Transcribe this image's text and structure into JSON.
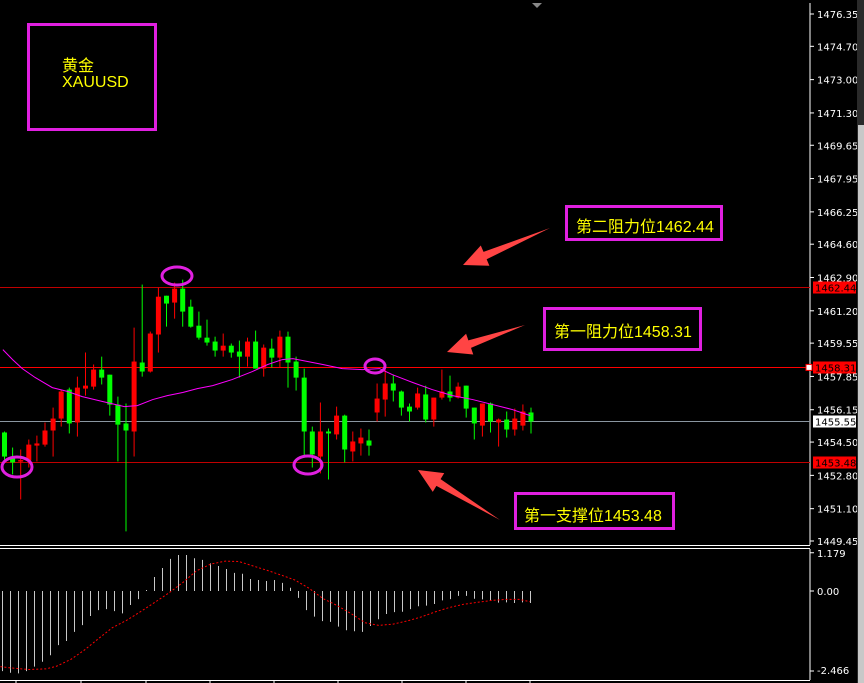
{
  "symbol_box": {
    "name_cn": "黄金",
    "symbol": "XAUUSD"
  },
  "annotations": [
    {
      "text": "第二阻力位1462.44"
    },
    {
      "text": "第一阻力位1458.31"
    },
    {
      "text": "第一支撑位1453.48"
    }
  ],
  "colors": {
    "bull": "#ff0000",
    "bear": "#00ff00",
    "ma": "#ff00ff",
    "annotation_border": "#e020e0",
    "annotation_text": "#ffff00",
    "arrow": "#ff4444",
    "level_line": "#ff0000",
    "price_line": "#8a96a0",
    "macd_hist": "#c8c8c8",
    "macd_signal": "#ff0000"
  },
  "chart_data": [
    {
      "type": "candlestick",
      "title": "",
      "ylim": [
        1449.45,
        1476.35
      ],
      "y_ticks": [
        "1476.35",
        "1474.70",
        "1473.00",
        "1471.30",
        "1469.65",
        "1467.95",
        "1466.25",
        "1464.60",
        "1462.90",
        "1461.20",
        "1459.55",
        "1457.85",
        "1456.15",
        "1454.50",
        "1452.80",
        "1451.10",
        "1449.45"
      ],
      "levels": [
        {
          "label": "1462.44",
          "value": 1462.44,
          "kind": "resistance-2"
        },
        {
          "label": "1458.31",
          "value": 1458.31,
          "kind": "resistance-1"
        },
        {
          "label": "1453.48",
          "value": 1453.48,
          "kind": "support-1"
        }
      ],
      "current_price": {
        "label": "1455.55",
        "value": 1455.55
      },
      "candles_ohlc": [
        [
          1454.99,
          1455.04,
          1453.61,
          1453.76
        ],
        [
          1453.71,
          1454.22,
          1452.85,
          1453.46
        ],
        [
          1453.52,
          1454.12,
          1451.57,
          1453.58
        ],
        [
          1453.56,
          1454.63,
          1453.2,
          1454.37
        ],
        [
          1454.32,
          1454.83,
          1453.51,
          1454.43
        ],
        [
          1454.37,
          1455.5,
          1454.27,
          1455.09
        ],
        [
          1455.09,
          1456.26,
          1453.76,
          1455.7
        ],
        [
          1455.7,
          1457.18,
          1455.29,
          1457.08
        ],
        [
          1457.18,
          1457.28,
          1454.94,
          1455.45
        ],
        [
          1455.5,
          1457.84,
          1454.78,
          1457.28
        ],
        [
          1457.23,
          1459.07,
          1456.87,
          1457.38
        ],
        [
          1457.33,
          1458.46,
          1457.18,
          1458.2
        ],
        [
          1458.2,
          1458.86,
          1457.44,
          1457.79
        ],
        [
          1457.94,
          1457.94,
          1455.85,
          1456.41
        ],
        [
          1456.41,
          1456.82,
          1453.51,
          1455.39
        ],
        [
          1455.45,
          1456.47,
          1449.94,
          1455.09
        ],
        [
          1455.04,
          1460.34,
          1453.76,
          1458.61
        ],
        [
          1458.56,
          1462.54,
          1457.84,
          1458.1
        ],
        [
          1458.1,
          1460.14,
          1458.05,
          1460.04
        ],
        [
          1459.99,
          1462.38,
          1459.07,
          1461.92
        ],
        [
          1461.97,
          1461.97,
          1460.39,
          1461.57
        ],
        [
          1461.62,
          1462.64,
          1460.8,
          1462.33
        ],
        [
          1462.33,
          1462.79,
          1460.39,
          1461.16
        ],
        [
          1461.41,
          1461.77,
          1460.34,
          1460.39
        ],
        [
          1460.44,
          1461.16,
          1459.73,
          1459.83
        ],
        [
          1459.83,
          1460.75,
          1459.42,
          1459.58
        ],
        [
          1459.63,
          1459.88,
          1458.86,
          1459.17
        ],
        [
          1459.17,
          1460.04,
          1458.86,
          1459.42
        ],
        [
          1459.42,
          1459.53,
          1458.81,
          1459.07
        ],
        [
          1459.12,
          1459.68,
          1457.79,
          1458.86
        ],
        [
          1458.86,
          1459.83,
          1458.35,
          1459.63
        ],
        [
          1459.63,
          1460.19,
          1458.25,
          1458.25
        ],
        [
          1458.25,
          1459.48,
          1457.84,
          1459.32
        ],
        [
          1459.27,
          1459.78,
          1458.3,
          1458.81
        ],
        [
          1458.81,
          1460.19,
          1458.3,
          1459.88
        ],
        [
          1459.88,
          1460.14,
          1457.28,
          1458.56
        ],
        [
          1458.61,
          1458.86,
          1457.13,
          1457.79
        ],
        [
          1457.79,
          1458.25,
          1453.81,
          1455.04
        ],
        [
          1455.04,
          1455.29,
          1453.2,
          1453.87
        ],
        [
          1453.76,
          1456.52,
          1452.9,
          1455.04
        ],
        [
          1455.04,
          1455.19,
          1452.59,
          1454.94
        ],
        [
          1454.89,
          1456.31,
          1454.63,
          1455.85
        ],
        [
          1455.85,
          1455.9,
          1453.46,
          1454.12
        ],
        [
          1454.02,
          1455.04,
          1453.51,
          1454.53
        ],
        [
          1454.43,
          1455.19,
          1453.81,
          1454.73
        ],
        [
          1454.58,
          1455.14,
          1453.81,
          1454.32
        ],
        [
          1456.01,
          1457.49,
          1455.55,
          1456.72
        ],
        [
          1456.67,
          1458.2,
          1455.8,
          1457.49
        ],
        [
          1457.49,
          1457.94,
          1456.57,
          1457.13
        ],
        [
          1457.08,
          1457.13,
          1455.85,
          1456.26
        ],
        [
          1456.31,
          1456.47,
          1455.55,
          1456.06
        ],
        [
          1456.26,
          1457.28,
          1456.16,
          1456.98
        ],
        [
          1456.93,
          1457.38,
          1455.5,
          1455.65
        ],
        [
          1455.65,
          1456.77,
          1455.29,
          1456.77
        ],
        [
          1456.77,
          1458.2,
          1456.67,
          1457.08
        ],
        [
          1457.08,
          1457.89,
          1456.57,
          1456.77
        ],
        [
          1456.77,
          1457.54,
          1456.72,
          1457.33
        ],
        [
          1457.38,
          1457.38,
          1455.75,
          1456.21
        ],
        [
          1456.26,
          1456.26,
          1454.63,
          1455.45
        ],
        [
          1455.34,
          1456.47,
          1454.78,
          1456.47
        ],
        [
          1456.47,
          1456.52,
          1454.99,
          1455.55
        ],
        [
          1455.5,
          1455.7,
          1454.27,
          1455.65
        ],
        [
          1455.65,
          1456.06,
          1454.73,
          1455.14
        ],
        [
          1455.14,
          1456.21,
          1454.83,
          1455.7
        ],
        [
          1455.34,
          1456.42,
          1455.09,
          1456.06
        ],
        [
          1456.01,
          1456.26,
          1454.94,
          1455.55
        ]
      ],
      "moving_average": [
        [
          0.8,
          1459.22
        ],
        [
          2,
          1458.71
        ],
        [
          3.2,
          1458.25
        ],
        [
          4.8,
          1457.79
        ],
        [
          6.9,
          1457.28
        ],
        [
          8.8,
          1457.08
        ],
        [
          10.6,
          1456.82
        ],
        [
          13.1,
          1456.57
        ],
        [
          15.8,
          1456.31
        ],
        [
          17.4,
          1456.36
        ],
        [
          19.3,
          1456.67
        ],
        [
          21.1,
          1456.87
        ],
        [
          23,
          1457.03
        ],
        [
          24.8,
          1457.23
        ],
        [
          26.7,
          1457.38
        ],
        [
          29.1,
          1457.69
        ],
        [
          31.6,
          1458.1
        ],
        [
          33.5,
          1458.46
        ],
        [
          35.3,
          1458.71
        ],
        [
          36.6,
          1458.76
        ],
        [
          40.3,
          1458.46
        ],
        [
          42.7,
          1458.25
        ],
        [
          45.2,
          1458.2
        ],
        [
          47.3,
          1458.25
        ],
        [
          48.9,
          1457.94
        ],
        [
          51.4,
          1457.54
        ],
        [
          53.8,
          1457.18
        ],
        [
          56.3,
          1456.87
        ],
        [
          58.8,
          1456.67
        ],
        [
          61.2,
          1456.42
        ],
        [
          63.7,
          1456.16
        ],
        [
          65.9,
          1455.85
        ]
      ]
    },
    {
      "type": "bar",
      "title": "",
      "ylim": [
        -2.466,
        1.179
      ],
      "y_ticks": [
        "1.179",
        "0.00",
        "-2.466"
      ],
      "histogram": [
        -2.47,
        -2.52,
        -2.54,
        -2.47,
        -2.33,
        -2.18,
        -1.98,
        -1.67,
        -1.54,
        -1.26,
        -1.05,
        -0.77,
        -0.59,
        -0.56,
        -0.62,
        -0.69,
        -0.43,
        -0.25,
        0.03,
        0.43,
        0.71,
        0.99,
        1.11,
        1.11,
        1.01,
        0.96,
        0.85,
        0.77,
        0.68,
        0.56,
        0.53,
        0.37,
        0.34,
        0.31,
        0.34,
        0.25,
        0.1,
        -0.21,
        -0.59,
        -0.79,
        -0.93,
        -0.95,
        -1.1,
        -1.21,
        -1.24,
        -1.26,
        -1.08,
        -0.87,
        -0.71,
        -0.65,
        -0.64,
        -0.56,
        -0.47,
        -0.45,
        -0.4,
        -0.29,
        -0.25,
        -0.15,
        -0.15,
        -0.24,
        -0.26,
        -0.29,
        -0.36,
        -0.35,
        -0.37,
        -0.35,
        -0.37
      ],
      "signal": [
        [
          0.8,
          -2.33
        ],
        [
          2.1,
          -2.37
        ],
        [
          4.3,
          -2.42
        ],
        [
          6.5,
          -2.4
        ],
        [
          7.8,
          -2.32
        ],
        [
          9.6,
          -2.11
        ],
        [
          11.3,
          -1.82
        ],
        [
          13.1,
          -1.46
        ],
        [
          14.8,
          -1.13
        ],
        [
          16.6,
          -0.9
        ],
        [
          18.3,
          -0.64
        ],
        [
          20.1,
          -0.35
        ],
        [
          21.8,
          -0.07
        ],
        [
          23.6,
          0.26
        ],
        [
          25.3,
          0.62
        ],
        [
          27.1,
          0.83
        ],
        [
          28.9,
          0.92
        ],
        [
          30.6,
          0.91
        ],
        [
          32.4,
          0.77
        ],
        [
          34.1,
          0.64
        ],
        [
          35.9,
          0.49
        ],
        [
          37.6,
          0.34
        ],
        [
          39.4,
          0.08
        ],
        [
          41.1,
          -0.23
        ],
        [
          42.9,
          -0.45
        ],
        [
          44.6,
          -0.69
        ],
        [
          46.4,
          -0.98
        ],
        [
          48.1,
          -1.06
        ],
        [
          49.9,
          -1.02
        ],
        [
          51.7,
          -0.92
        ],
        [
          53.4,
          -0.8
        ],
        [
          55.2,
          -0.64
        ],
        [
          56.9,
          -0.51
        ],
        [
          58.7,
          -0.41
        ],
        [
          60.4,
          -0.35
        ],
        [
          62.2,
          -0.29
        ],
        [
          63.9,
          -0.26
        ],
        [
          65.7,
          -0.26
        ],
        [
          67,
          -0.33
        ]
      ]
    }
  ]
}
